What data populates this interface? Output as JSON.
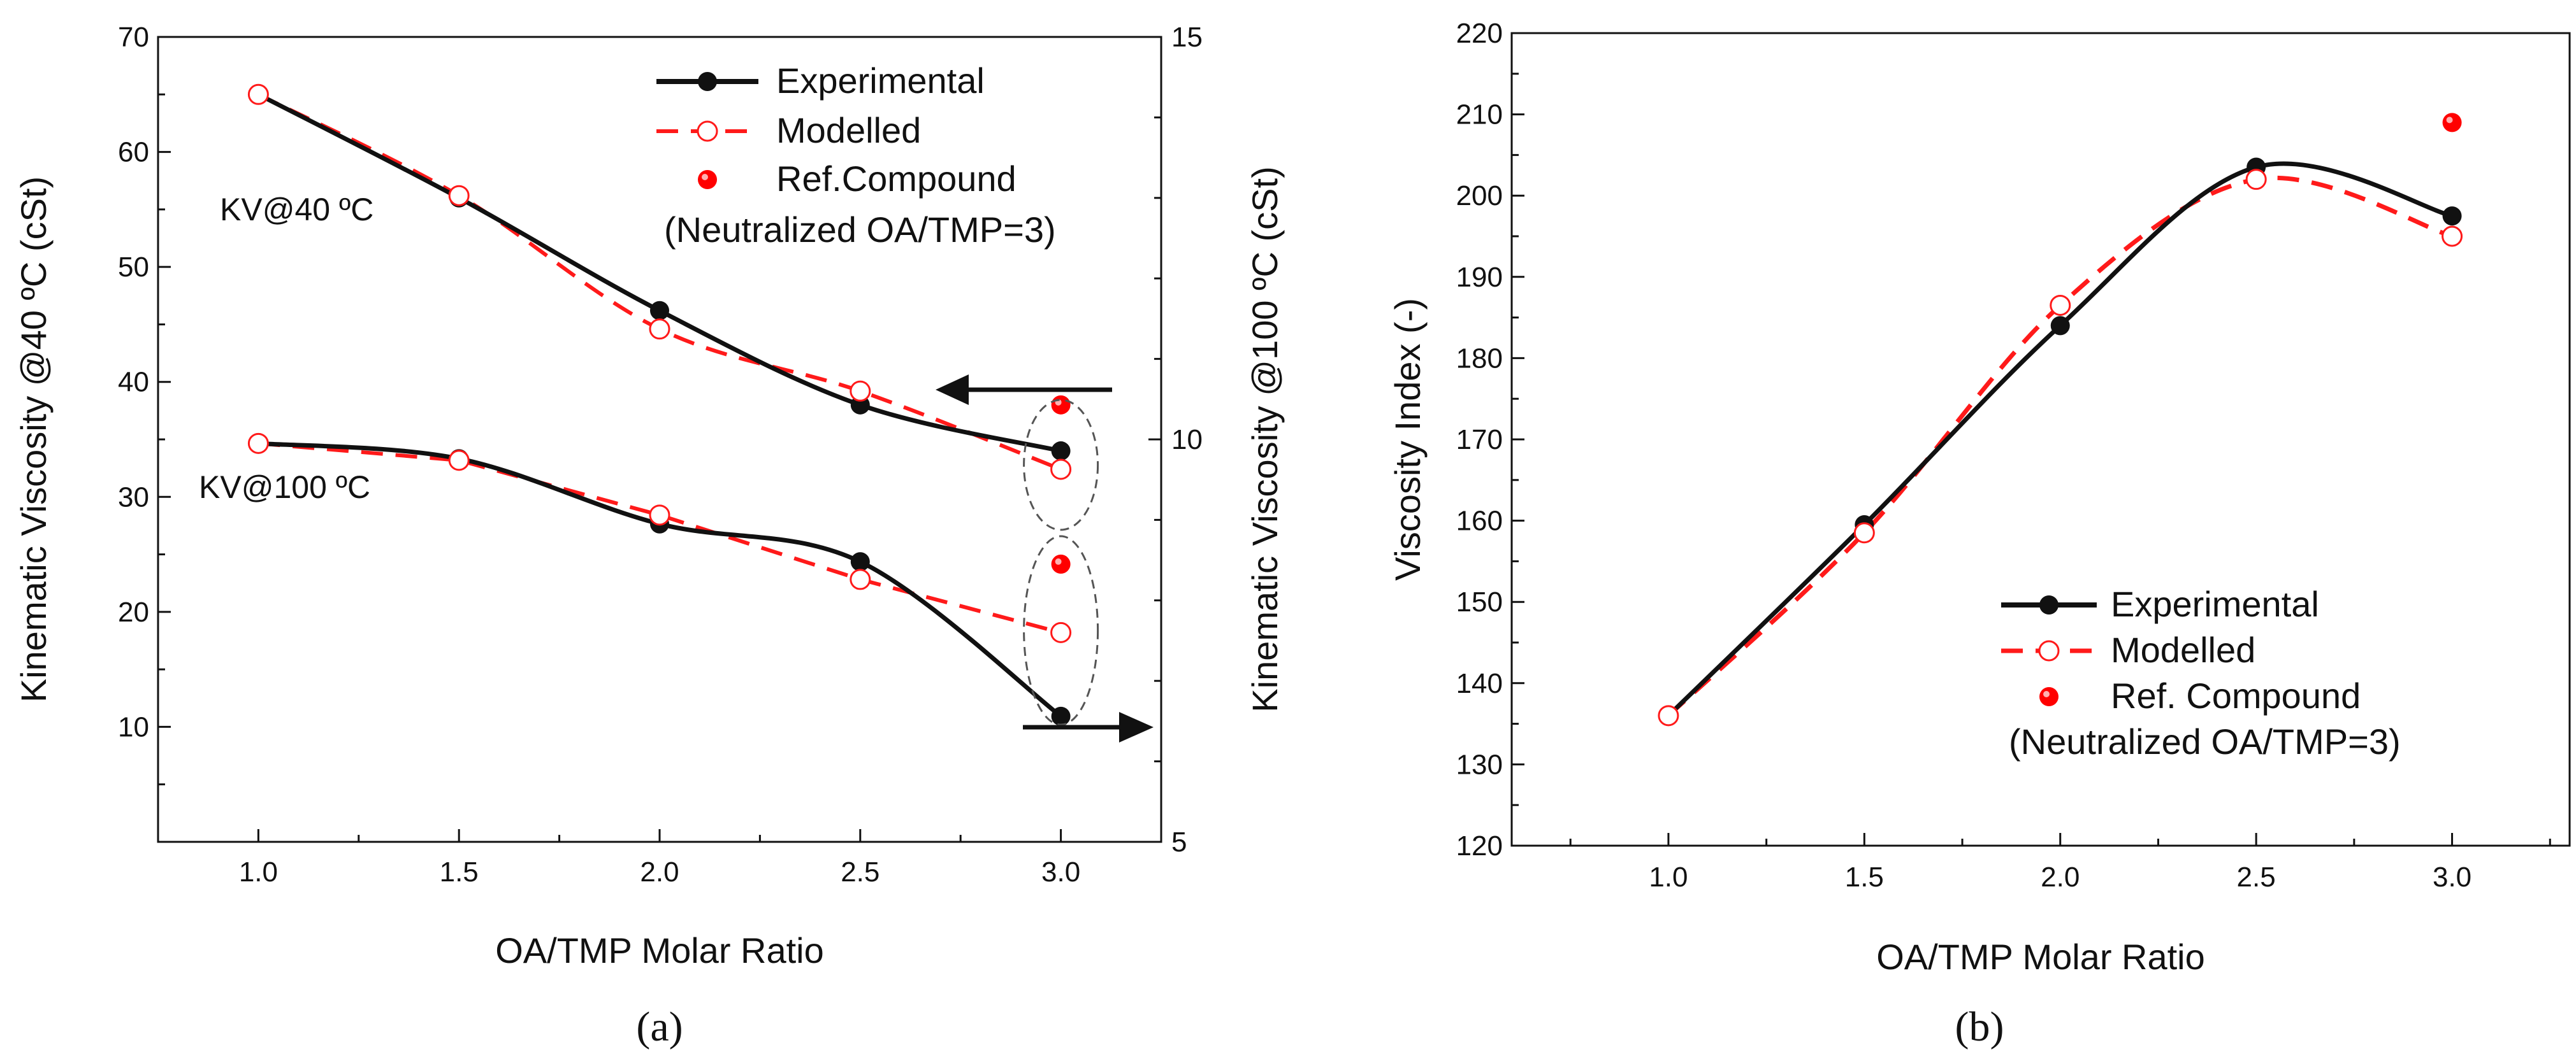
{
  "chart_data": [
    {
      "type": "line",
      "panel_label": "(a)",
      "xlabel": "OA/TMP Molar Ratio",
      "ylabel_left": "Kinematic Viscosity @40 ºC (cSt)",
      "ylabel_right": "Kinematic Viscosity @100 ºC (cSt)",
      "xlim": [
        0.75,
        3.25
      ],
      "ylim_left": [
        0,
        70
      ],
      "ylim_right": [
        5,
        15
      ],
      "xticks": [
        "1.0",
        "1.5",
        "2.0",
        "2.5",
        "3.0"
      ],
      "yticks_left": [
        "10",
        "20",
        "30",
        "40",
        "50",
        "60",
        "70"
      ],
      "yticks_right": [
        "5",
        "10",
        "15"
      ],
      "x": [
        1.0,
        1.5,
        2.0,
        2.5,
        3.0
      ],
      "annotations": [
        "KV@40 ºC",
        "KV@100 ºC"
      ],
      "legend": {
        "position": "top-right",
        "entries": [
          "Experimental",
          "Modelled",
          "Ref.Compound",
          "(Neutralized OA/TMP=3)"
        ]
      },
      "series": [
        {
          "name": "KV@40 Experimental",
          "axis": "left",
          "values": [
            65.0,
            56.0,
            46.2,
            38.0,
            34.0
          ]
        },
        {
          "name": "KV@40 Modelled",
          "axis": "left",
          "values": [
            65.0,
            56.2,
            44.6,
            39.2,
            32.4
          ]
        },
        {
          "name": "KV@40 Ref.Compound",
          "axis": "left",
          "x": [
            3.0
          ],
          "values": [
            38.0
          ]
        },
        {
          "name": "KV@100 Experimental",
          "axis": "right",
          "values": [
            9.95,
            9.76,
            8.95,
            8.48,
            6.56
          ]
        },
        {
          "name": "KV@100 Modelled",
          "axis": "right",
          "values": [
            9.95,
            9.74,
            9.06,
            8.26,
            7.6
          ]
        },
        {
          "name": "KV@100 Ref.Compound",
          "axis": "right",
          "x": [
            3.0
          ],
          "values": [
            8.45
          ]
        }
      ]
    },
    {
      "type": "line",
      "panel_label": "(b)",
      "xlabel": "OA/TMP Molar Ratio",
      "ylabel": "Viscosity Index (-)",
      "xlim": [
        0.6,
        3.3
      ],
      "ylim": [
        120,
        220
      ],
      "xticks": [
        "1.0",
        "1.5",
        "2.0",
        "2.5",
        "3.0"
      ],
      "yticks": [
        "120",
        "130",
        "140",
        "150",
        "160",
        "170",
        "180",
        "190",
        "200",
        "210",
        "220"
      ],
      "x": [
        1.0,
        1.5,
        2.0,
        2.5,
        3.0
      ],
      "legend": {
        "position": "bottom-right",
        "entries": [
          "Experimental",
          "Modelled",
          "Ref. Compound",
          "(Neutralized OA/TMP=3)"
        ]
      },
      "series": [
        {
          "name": "Experimental",
          "values": [
            136.0,
            159.5,
            184.0,
            203.5,
            197.5
          ]
        },
        {
          "name": "Modelled",
          "values": [
            136.0,
            158.5,
            186.5,
            202.0,
            195.0
          ]
        },
        {
          "name": "Ref. Compound",
          "x": [
            3.0
          ],
          "values": [
            209.0
          ]
        }
      ]
    }
  ]
}
